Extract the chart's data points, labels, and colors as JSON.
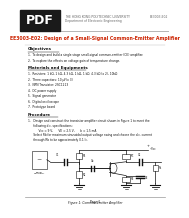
{
  "title_line1": "THE HONG KONG POLYTECHNIC UNIVERSITY",
  "title_line2": "EE3003-E02",
  "title_line3": "Department of Electronic Engineering",
  "exp_title": "EE3003-E02: Design of a Small-Signal Common-Emitter Amplifier",
  "section1": "Objectives",
  "obj1": "1.  To design and build a single stage small-signal common-emitter (CE) amplifier.",
  "obj2": "2.  To explore the effects on voltage gain of temperature change.",
  "section2": "Materials and Equipments",
  "mat1": "1.  Resistors: 1 kΩ, 1 kΩ, 4.3 kΩ, 1 kΩ, 1 kΩ, 4.3 kΩ (x 2), 10kΩ",
  "mat2": "2.  Three capacitors: 10 μF(x 3)",
  "mat3": "3.  NPN Transistor: 2SC1213",
  "mat4": "4.  DC power supply",
  "mat5": "5.  Signal generator",
  "mat6": "6.  Digital oscilloscope",
  "mat7": "7.  Prototype board",
  "section3": "Procedure",
  "proc1": "1.   Design and construct the transistor amplifier circuit shown in Figure 1 to meet the",
  "proc1b": "      following d.c. specifications:",
  "proc2": "            Vcc = 9 V,      VE = 2.5 V,      Ic = 1.5 mA.",
  "proc3": "      Select Rb for maximum sinusoidal output voltage swing and choose the d.c. current",
  "proc3b": "      through Rb to be approximately 0.1 Ic.",
  "fig_caption": "Figure 1: Common-Emitter Amplifier",
  "footer": "Page 1",
  "bg_color": "#ffffff",
  "header_bg": "#1a1a1a",
  "pdf_text_color": "#ffffff",
  "text_color": "#111111",
  "title_color": "#cc2200",
  "header_line_color": "#999999"
}
